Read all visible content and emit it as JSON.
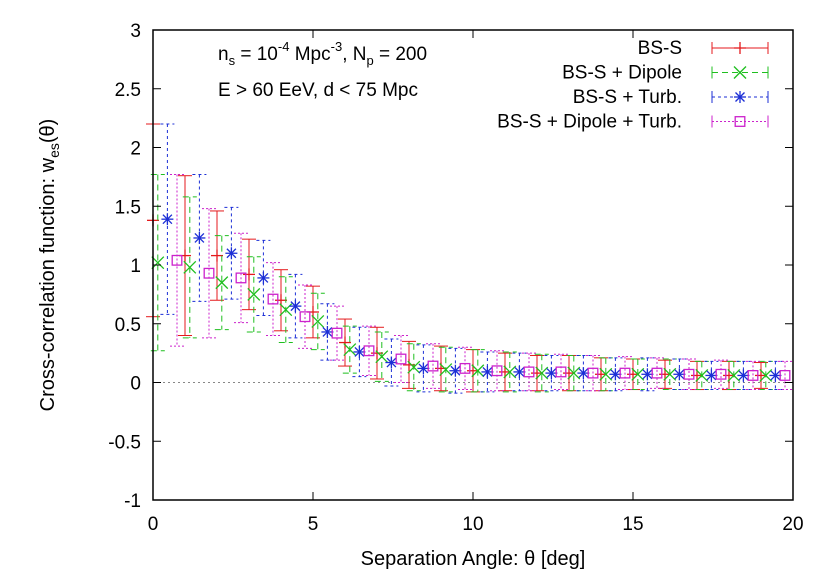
{
  "chart_data": {
    "type": "scatter",
    "xlabel_main": "Separation Angle: ",
    "xlabel_symbol": "θ",
    "xlabel_unit": " [deg]",
    "ylabel_main": "Cross-correlation function: w",
    "ylabel_sub": "es",
    "ylabel_tail": "(θ)",
    "xlim": [
      0,
      20
    ],
    "ylim": [
      -1,
      3
    ],
    "x_ticks": [
      "0",
      "5",
      "10",
      "15",
      "20"
    ],
    "y_ticks": [
      "-1",
      "-0.5",
      "0",
      "0.5",
      "1",
      "1.5",
      "2",
      "2.5",
      "3"
    ],
    "annotation": {
      "line1": {
        "a": "n",
        "a_sub": "s",
        "b": " = 10",
        "b_sup": "-4",
        "c": " Mpc",
        "c_sup": "-3",
        "d": ", N",
        "d_sub": "p",
        "e": " = 200"
      },
      "line2": "E > 60 EeV, d < 75 Mpc"
    },
    "legend_position": "top-right",
    "series": [
      {
        "name": "BS-S",
        "color": "#e41a1c",
        "marker": "plus",
        "dash": "",
        "offset": 0.0,
        "values": [
          1.38,
          1.08,
          1.08,
          0.92,
          0.7,
          0.6,
          0.34,
          0.25,
          0.15,
          0.12,
          0.1,
          0.09,
          0.08,
          0.08,
          0.07,
          0.07,
          0.07,
          0.06,
          0.06,
          0.06
        ],
        "err": [
          0.82,
          0.68,
          0.38,
          0.3,
          0.26,
          0.22,
          0.2,
          0.22,
          0.2,
          0.19,
          0.18,
          0.16,
          0.15,
          0.15,
          0.14,
          0.13,
          0.12,
          0.12,
          0.12,
          0.11
        ]
      },
      {
        "name": "BS-S + Dipole",
        "color": "#1fbf1f",
        "marker": "cross",
        "dash": "6,4",
        "offset": 0.15,
        "values": [
          1.02,
          0.98,
          0.85,
          0.75,
          0.62,
          0.52,
          0.28,
          0.22,
          0.13,
          0.11,
          0.1,
          0.09,
          0.08,
          0.08,
          0.07,
          0.07,
          0.07,
          0.06,
          0.06,
          0.06
        ],
        "err": [
          0.75,
          0.6,
          0.4,
          0.32,
          0.28,
          0.24,
          0.2,
          0.21,
          0.2,
          0.19,
          0.18,
          0.17,
          0.16,
          0.15,
          0.14,
          0.13,
          0.13,
          0.12,
          0.12,
          0.12
        ]
      },
      {
        "name": "BS-S + Turb.",
        "color": "#1c2fd6",
        "marker": "star",
        "dash": "3,3",
        "offset": 0.45,
        "values": [
          1.39,
          1.23,
          1.1,
          0.89,
          0.65,
          0.43,
          0.26,
          0.17,
          0.12,
          0.1,
          0.09,
          0.09,
          0.08,
          0.08,
          0.07,
          0.07,
          0.07,
          0.06,
          0.06,
          0.06
        ],
        "err": [
          0.81,
          0.54,
          0.39,
          0.32,
          0.27,
          0.24,
          0.21,
          0.2,
          0.2,
          0.19,
          0.17,
          0.16,
          0.15,
          0.15,
          0.14,
          0.14,
          0.13,
          0.12,
          0.12,
          0.12
        ]
      },
      {
        "name": "BS-S + Dipole + Turb.",
        "color": "#cc22cc",
        "marker": "square",
        "dash": "2,2",
        "offset": 0.75,
        "values": [
          1.04,
          0.93,
          0.89,
          0.71,
          0.56,
          0.42,
          0.27,
          0.2,
          0.14,
          0.12,
          0.1,
          0.09,
          0.09,
          0.08,
          0.08,
          0.08,
          0.07,
          0.07,
          0.06,
          0.06
        ],
        "err": [
          0.73,
          0.55,
          0.38,
          0.31,
          0.27,
          0.23,
          0.21,
          0.2,
          0.19,
          0.18,
          0.17,
          0.16,
          0.15,
          0.15,
          0.14,
          0.13,
          0.13,
          0.12,
          0.12,
          0.12
        ]
      }
    ]
  }
}
